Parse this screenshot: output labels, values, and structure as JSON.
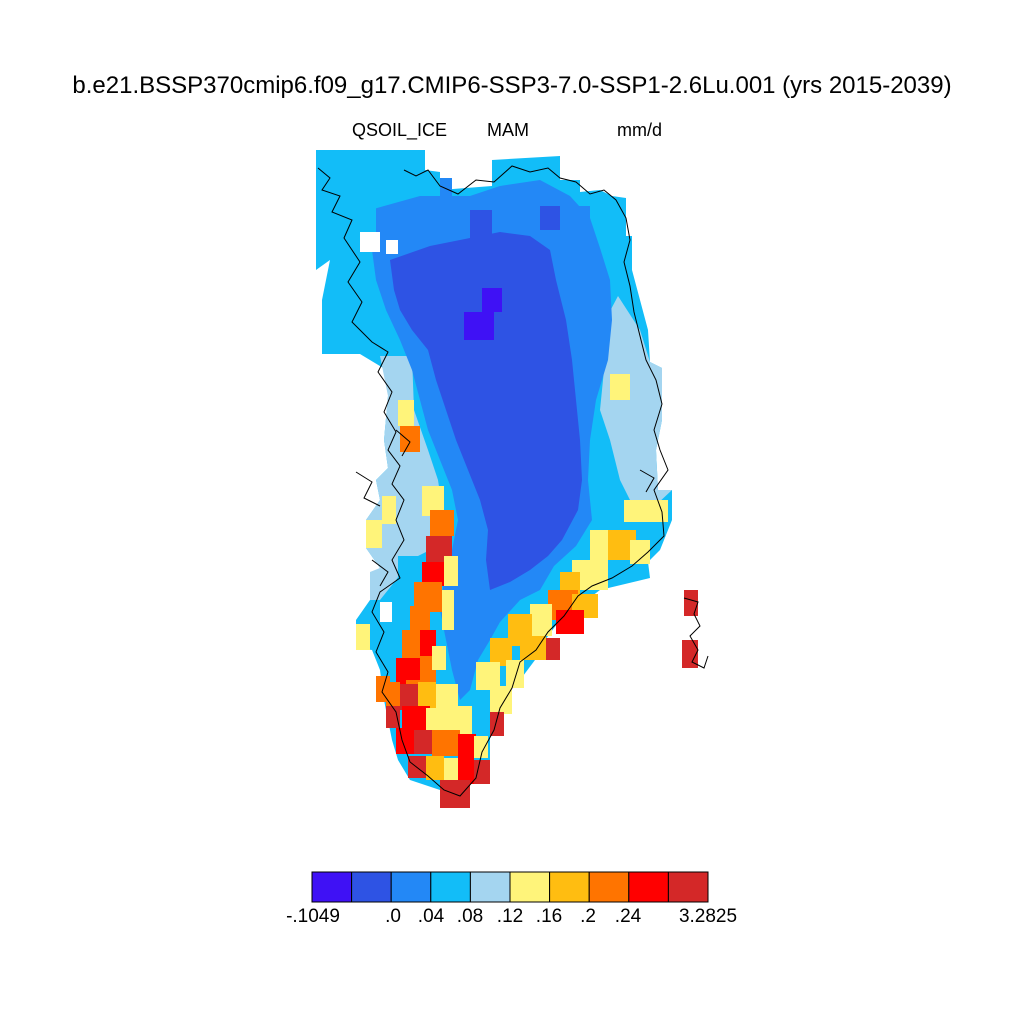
{
  "header": {
    "title": "b.e21.BSSP370cmip6.f09_g17.CMIP6-SSP3-7.0-SSP1-2.6Lu.001 (yrs 2015-2039)",
    "variable": "QSOIL_ICE",
    "season": "MAM",
    "units": "mm/d"
  },
  "colorbar": {
    "colors": [
      "#3f11f5",
      "#2e53e4",
      "#2388f6",
      "#12bdf8",
      "#a4d5f0",
      "#fff47a",
      "#ffbd11",
      "#ff7400",
      "#ff0000",
      "#d42828"
    ],
    "labels": [
      "-.1049",
      ".0",
      ".04",
      ".08",
      ".12",
      ".16",
      ".2",
      ".24",
      "3.2825"
    ],
    "min": -0.1049,
    "max": 3.2825
  },
  "map": {
    "region": "Greenland",
    "colors": {
      "deep": "#3f11f5",
      "core": "#2e53e4",
      "ring": "#2388f6",
      "cyan": "#12bdf8",
      "pale": "#a4d5f0",
      "yellow": "#fff47a",
      "amber": "#ffbd11",
      "orange": "#ff7400",
      "red": "#ff0000",
      "crimson": "#d42828"
    }
  }
}
